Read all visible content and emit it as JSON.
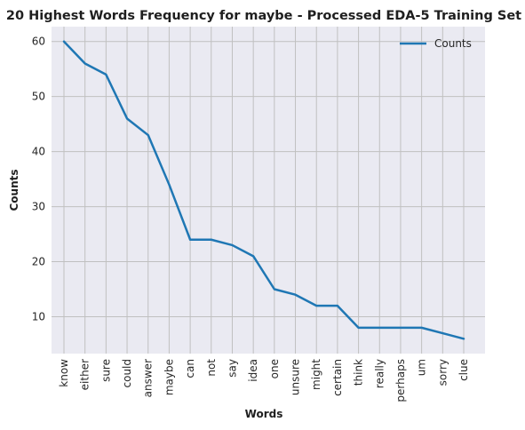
{
  "chart_data": {
    "type": "line",
    "title": "20 Highest Words Frequency for maybe - Processed EDA-5 Training Set",
    "xlabel": "Words",
    "ylabel": "Counts",
    "categories": [
      "know",
      "either",
      "sure",
      "could",
      "answer",
      "maybe",
      "can",
      "not",
      "say",
      "idea",
      "one",
      "unsure",
      "might",
      "certain",
      "think",
      "really",
      "perhaps",
      "um",
      "sorry",
      "clue"
    ],
    "series": [
      {
        "name": "Counts",
        "values": [
          60,
          56,
          54,
          46,
          43,
          34,
          24,
          24,
          23,
          21,
          15,
          14,
          12,
          12,
          8,
          8,
          8,
          8,
          7,
          6
        ],
        "color": "#1f77b4"
      }
    ],
    "ylim": [
      3.3,
      62.7
    ],
    "yticks": [
      "10",
      "20",
      "30",
      "40",
      "50",
      "60"
    ],
    "grid": true,
    "legend": "top-right",
    "background_color": "#eaeaf2",
    "grid_color": "#c0c0c0"
  }
}
